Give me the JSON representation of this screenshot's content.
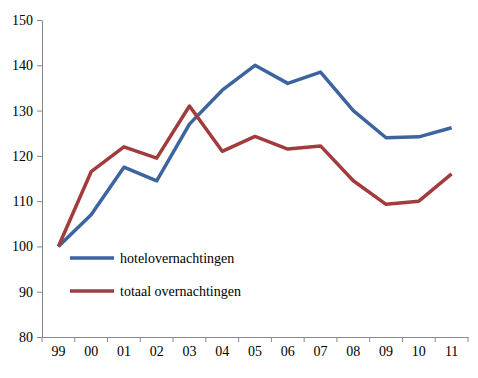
{
  "chart_data": {
    "type": "line",
    "categories": [
      "99",
      "00",
      "01",
      "02",
      "03",
      "04",
      "05",
      "06",
      "07",
      "08",
      "09",
      "10",
      "11"
    ],
    "series": [
      {
        "name": "hotelovernachtingen",
        "color": "#3b64a0",
        "values": [
          100,
          107,
          117.5,
          114.5,
          127,
          134.5,
          140,
          136,
          138.5,
          130,
          124,
          124.2,
          126.2
        ]
      },
      {
        "name": "totaal overnachtingen",
        "color": "#a23b3d",
        "values": [
          100,
          116.5,
          122,
          119.5,
          131,
          121,
          124.3,
          121.5,
          122.2,
          114.5,
          109.3,
          110,
          116
        ]
      }
    ],
    "ylim": [
      80,
      150
    ],
    "yticks": [
      80,
      90,
      100,
      110,
      120,
      130,
      140,
      150
    ],
    "grid": false,
    "legend": "lower left"
  }
}
